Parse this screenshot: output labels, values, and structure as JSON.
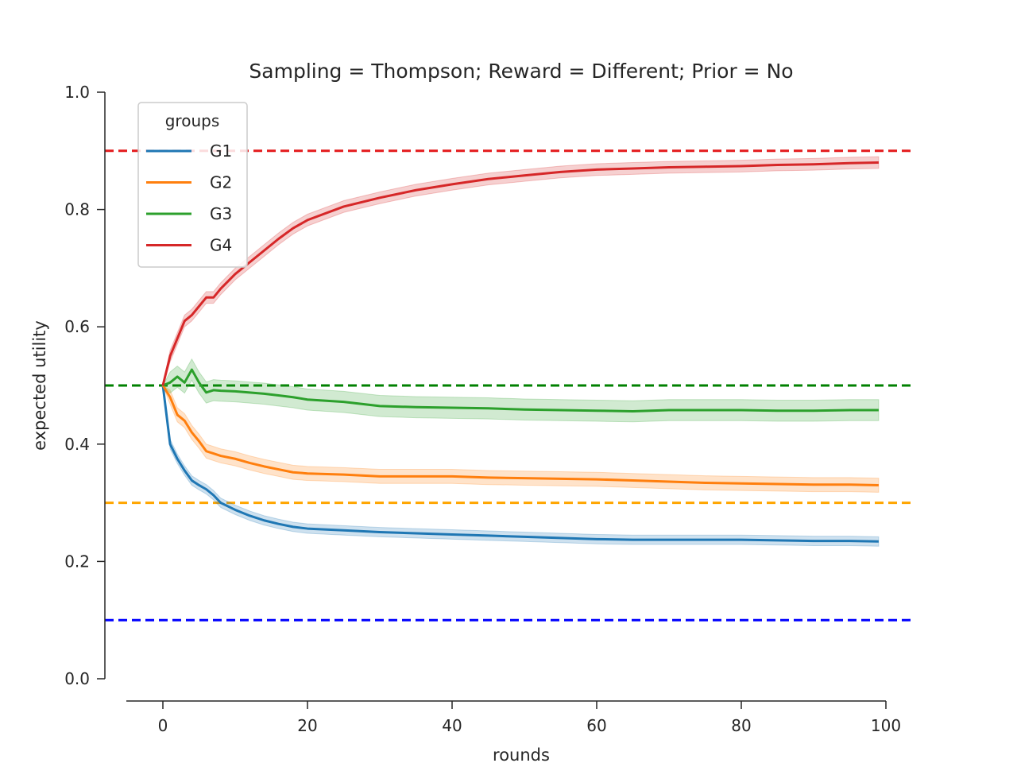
{
  "chart_data": {
    "type": "line",
    "title": "Sampling = Thompson; Reward = Different; Prior = No",
    "xlabel": "rounds",
    "ylabel": "expected utility",
    "xlim": [
      -8,
      101
    ],
    "ylim": [
      0.0,
      1.0
    ],
    "xticks": [
      0,
      20,
      40,
      60,
      80,
      100
    ],
    "yticks": [
      0.0,
      0.2,
      0.4,
      0.6,
      0.8,
      1.0
    ],
    "xtick_labels": [
      "0",
      "20",
      "40",
      "60",
      "80",
      "100"
    ],
    "ytick_labels": [
      "0.0",
      "0.2",
      "0.4",
      "0.6",
      "0.8",
      "1.0"
    ],
    "grid": false,
    "legend": {
      "title": "groups",
      "placement": "top-left"
    },
    "reference_lines": [
      {
        "y": 0.9,
        "color": "#e41a1c",
        "style": "dashed"
      },
      {
        "y": 0.5,
        "color": "#008000",
        "style": "dashed"
      },
      {
        "y": 0.3,
        "color": "#ffa500",
        "style": "dashed"
      },
      {
        "y": 0.1,
        "color": "#0000ff",
        "style": "dashed"
      }
    ],
    "series": [
      {
        "name": "G1",
        "color": "#1f77b4",
        "x": [
          0,
          1,
          2,
          3,
          4,
          5,
          6,
          7,
          8,
          10,
          12,
          14,
          16,
          18,
          20,
          25,
          30,
          35,
          40,
          45,
          50,
          55,
          60,
          65,
          70,
          75,
          80,
          85,
          90,
          95,
          99
        ],
        "y": [
          0.5,
          0.4,
          0.375,
          0.355,
          0.338,
          0.33,
          0.323,
          0.313,
          0.3,
          0.288,
          0.278,
          0.27,
          0.264,
          0.259,
          0.256,
          0.253,
          0.25,
          0.248,
          0.246,
          0.244,
          0.242,
          0.24,
          0.238,
          0.237,
          0.237,
          0.237,
          0.237,
          0.236,
          0.235,
          0.235,
          0.234
        ],
        "band": 0.008
      },
      {
        "name": "G2",
        "color": "#ff7f0e",
        "x": [
          0,
          1,
          2,
          3,
          4,
          5,
          6,
          7,
          8,
          10,
          12,
          14,
          16,
          18,
          20,
          25,
          30,
          35,
          40,
          45,
          50,
          55,
          60,
          65,
          70,
          75,
          80,
          85,
          90,
          95,
          99
        ],
        "y": [
          0.5,
          0.48,
          0.45,
          0.44,
          0.42,
          0.405,
          0.388,
          0.384,
          0.38,
          0.375,
          0.368,
          0.362,
          0.357,
          0.352,
          0.35,
          0.348,
          0.345,
          0.345,
          0.345,
          0.343,
          0.342,
          0.341,
          0.34,
          0.338,
          0.336,
          0.334,
          0.333,
          0.332,
          0.331,
          0.331,
          0.33
        ],
        "band": 0.012
      },
      {
        "name": "G3",
        "color": "#2ca02c",
        "x": [
          0,
          1,
          2,
          3,
          4,
          5,
          6,
          7,
          8,
          10,
          12,
          14,
          16,
          18,
          20,
          25,
          30,
          35,
          40,
          45,
          50,
          55,
          60,
          65,
          70,
          75,
          80,
          85,
          90,
          95,
          99
        ],
        "y": [
          0.5,
          0.505,
          0.515,
          0.505,
          0.527,
          0.505,
          0.488,
          0.492,
          0.491,
          0.49,
          0.488,
          0.486,
          0.483,
          0.48,
          0.476,
          0.472,
          0.465,
          0.463,
          0.462,
          0.461,
          0.459,
          0.458,
          0.457,
          0.456,
          0.458,
          0.458,
          0.458,
          0.457,
          0.457,
          0.458,
          0.458
        ],
        "band": 0.018
      },
      {
        "name": "G4",
        "color": "#d62728",
        "x": [
          0,
          1,
          2,
          3,
          4,
          5,
          6,
          7,
          8,
          10,
          12,
          14,
          16,
          18,
          20,
          25,
          30,
          35,
          40,
          45,
          50,
          55,
          60,
          65,
          70,
          75,
          80,
          85,
          90,
          95,
          99
        ],
        "y": [
          0.5,
          0.55,
          0.58,
          0.61,
          0.62,
          0.635,
          0.65,
          0.65,
          0.665,
          0.69,
          0.71,
          0.73,
          0.75,
          0.768,
          0.782,
          0.805,
          0.82,
          0.833,
          0.843,
          0.852,
          0.858,
          0.864,
          0.868,
          0.87,
          0.872,
          0.873,
          0.874,
          0.876,
          0.877,
          0.879,
          0.88
        ],
        "band": 0.01
      }
    ]
  }
}
